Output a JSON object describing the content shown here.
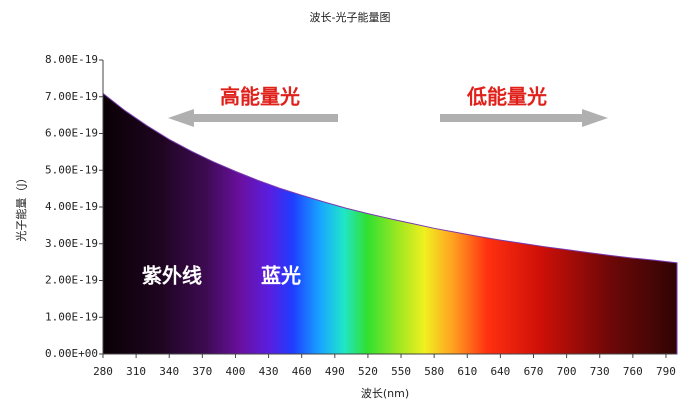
{
  "chart_data": {
    "type": "area",
    "title": "波长-光子能量图",
    "x_label": "波长(nm)",
    "y_label": "光子能量（J）",
    "x": [
      280,
      300,
      320,
      340,
      360,
      380,
      400,
      420,
      440,
      460,
      480,
      500,
      520,
      540,
      560,
      580,
      600,
      620,
      640,
      660,
      680,
      700,
      720,
      740,
      760,
      780,
      800
    ],
    "values": [
      7.09e-19,
      6.62e-19,
      6.21e-19,
      5.84e-19,
      5.52e-19,
      5.23e-19,
      4.97e-19,
      4.73e-19,
      4.51e-19,
      4.32e-19,
      4.14e-19,
      3.97e-19,
      3.82e-19,
      3.68e-19,
      3.55e-19,
      3.42e-19,
      3.31e-19,
      3.2e-19,
      3.1e-19,
      3.01e-19,
      2.92e-19,
      2.84e-19,
      2.76e-19,
      2.68e-19,
      2.61e-19,
      2.55e-19,
      2.48e-19
    ],
    "xlim": [
      280,
      800
    ],
    "xticks": [
      280,
      310,
      340,
      370,
      400,
      430,
      460,
      490,
      520,
      550,
      580,
      610,
      640,
      670,
      700,
      730,
      760,
      790
    ],
    "ylim": [
      0,
      8e-19
    ],
    "yticks": [
      {
        "value": 0,
        "label": "0.00E+00"
      },
      {
        "value": 1e-19,
        "label": "1.00E-19"
      },
      {
        "value": 2e-19,
        "label": "2.00E-19"
      },
      {
        "value": 3e-19,
        "label": "3.00E-19"
      },
      {
        "value": 4e-19,
        "label": "4.00E-19"
      },
      {
        "value": 5e-19,
        "label": "5.00E-19"
      },
      {
        "value": 6e-19,
        "label": "6.00E-19"
      },
      {
        "value": 7e-19,
        "label": "7.00E-19"
      },
      {
        "value": 8e-19,
        "label": "8.00E-19"
      }
    ],
    "annotations": [
      "高能量光",
      "低能量光",
      "紫外线",
      "蓝光"
    ]
  }
}
